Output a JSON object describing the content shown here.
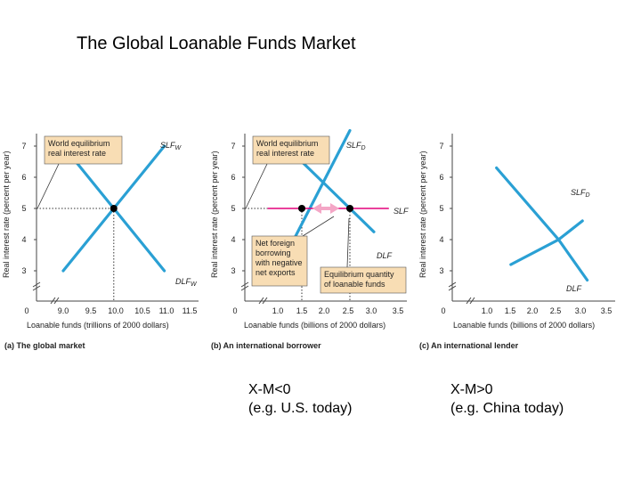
{
  "slide": {
    "title": "The Global Loanable Funds Market",
    "captions": [
      {
        "line1": "X-M<0",
        "line2": "(e.g. U.S. today)"
      },
      {
        "line1": "X-M>0",
        "line2": "(e.g. China today)"
      }
    ]
  },
  "colors": {
    "curve": "#2aa0d4",
    "world_rate_line": "#e4007c",
    "annotation_box": "#f8ddb4",
    "arrow": "#f4a6c6",
    "equilibrium_point": "#000000"
  },
  "chart_data": [
    {
      "type": "line",
      "panel_label": "(a) The global market",
      "xlabel": "Loanable funds (trillions of 2000 dollars)",
      "ylabel": "Real interest rate (percent per year)",
      "x_ticks": [
        "0",
        "9.0",
        "9.5",
        "10.0",
        "10.5",
        "11.0",
        "11.5"
      ],
      "y_ticks": [
        "3",
        "4",
        "5",
        "6",
        "7"
      ],
      "xlim": [
        8.8,
        11.6
      ],
      "ylim": [
        2.6,
        7.5
      ],
      "series": [
        {
          "name": "SLFw",
          "label": "SLF",
          "subscript": "W",
          "points": [
            [
              9.0,
              3.0
            ],
            [
              10.0,
              5.0
            ],
            [
              11.0,
              7.0
            ]
          ]
        },
        {
          "name": "DLFw",
          "label": "DLF",
          "subscript": "W",
          "points": [
            [
              9.0,
              7.0
            ],
            [
              10.0,
              5.0
            ],
            [
              11.0,
              3.0
            ]
          ]
        }
      ],
      "equilibrium": {
        "x": 10.0,
        "y": 5.0
      },
      "annotations": [
        {
          "text_lines": [
            "World equilibrium",
            "real interest rate"
          ]
        }
      ]
    },
    {
      "type": "line",
      "panel_label": "(b) An international borrower",
      "xlabel": "Loanable funds (billions of 2000 dollars)",
      "ylabel": "Real interest rate (percent per year)",
      "x_ticks": [
        "0",
        "1.0",
        "1.5",
        "2.0",
        "2.5",
        "3.0",
        "3.5"
      ],
      "y_ticks": [
        "3",
        "4",
        "5",
        "6",
        "7"
      ],
      "xlim": [
        0.8,
        3.6
      ],
      "ylim": [
        2.6,
        7.5
      ],
      "series": [
        {
          "name": "SLFD",
          "label": "SLF",
          "subscript": "D",
          "points": [
            [
              1.0,
              3.0
            ],
            [
              2.0,
              6.0
            ],
            [
              2.5,
              7.5
            ]
          ]
        },
        {
          "name": "DLF",
          "label": "DLF",
          "subscript": "",
          "points": [
            [
              1.5,
              6.5
            ],
            [
              2.5,
              5.0
            ],
            [
              3.0,
              4.25
            ]
          ]
        },
        {
          "name": "SLF",
          "label": "SLF",
          "subscript": "",
          "points": [
            [
              0.8,
              5.0
            ],
            [
              3.3,
              5.0
            ]
          ]
        }
      ],
      "points": [
        {
          "x": 1.5,
          "y": 5.0
        },
        {
          "x": 2.5,
          "y": 5.0
        }
      ],
      "annotations": [
        {
          "text_lines": [
            "World equilibrium",
            "real interest rate"
          ]
        },
        {
          "text_lines": [
            "Net foreign",
            "borrowing",
            "with negative",
            "net exports"
          ]
        },
        {
          "text_lines": [
            "Equilibrium quantity",
            "of loanable funds"
          ]
        }
      ]
    },
    {
      "type": "line",
      "panel_label": "(c) An international lender",
      "xlabel": "Loanable funds (billions of 2000 dollars)",
      "ylabel": "Real interest rate (percent per year)",
      "x_ticks": [
        "0",
        "1.0",
        "1.5",
        "2.0",
        "2.5",
        "3.0",
        "3.5"
      ],
      "y_ticks": [
        "3",
        "4",
        "5",
        "6",
        "7"
      ],
      "xlim": [
        0.8,
        3.6
      ],
      "ylim": [
        2.6,
        7.5
      ],
      "series": [
        {
          "name": "SLFD",
          "label": "SLF",
          "subscript": "D",
          "points": [
            [
              1.5,
              3.2
            ],
            [
              2.5,
              4.0
            ],
            [
              3.0,
              4.6
            ]
          ]
        },
        {
          "name": "DLF",
          "label": "DLF",
          "subscript": "",
          "points": [
            [
              1.2,
              6.3
            ],
            [
              2.5,
              4.0
            ],
            [
              3.1,
              2.7
            ]
          ]
        }
      ]
    }
  ]
}
